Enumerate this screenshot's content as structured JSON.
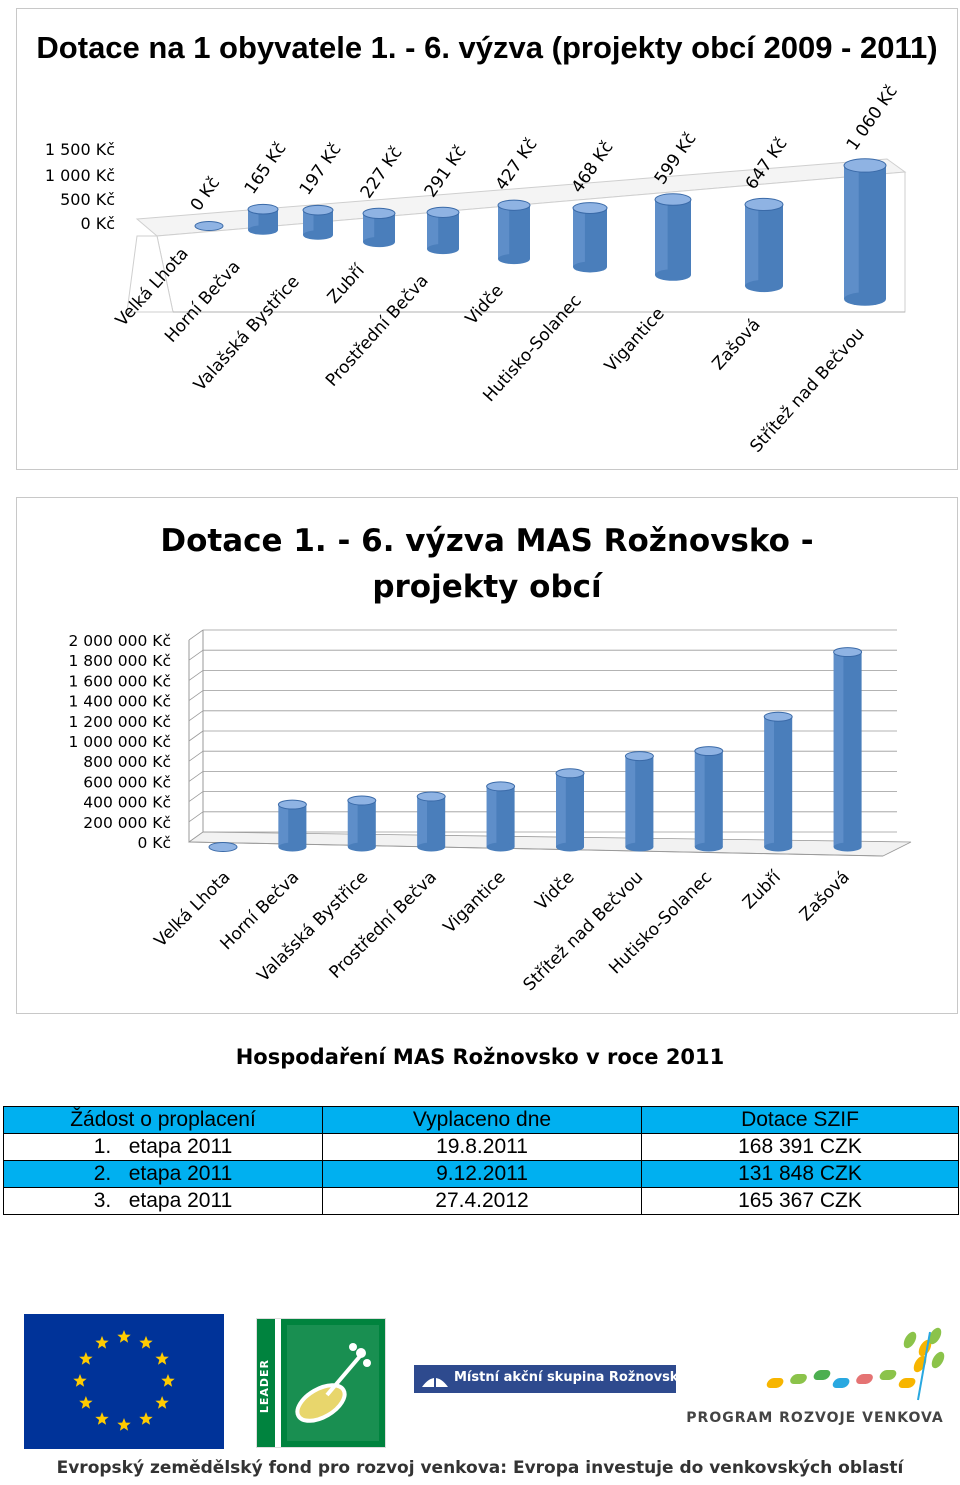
{
  "chart_data": [
    {
      "type": "bar",
      "title": "Dotace na 1 obyvatele 1. - 6. výzva (projekty obcí 2009 - 2011)",
      "categories": [
        "Velká Lhota",
        "Horní Bečva",
        "Valašská Bystřice",
        "Zubří",
        "Prostřední Bečva",
        "Vidče",
        "Hutisko-Solanec",
        "Vigantice",
        "Zašová",
        "Střítež nad Bečvou"
      ],
      "values": [
        0,
        165,
        197,
        227,
        291,
        427,
        468,
        599,
        647,
        1060
      ],
      "data_labels": [
        "0 Kč",
        "165 Kč",
        "197 Kč",
        "227 Kč",
        "291 Kč",
        "427 Kč",
        "468 Kč",
        "599 Kč",
        "647 Kč",
        "1 060 Kč"
      ],
      "y_ticks": [
        "1 500 Kč",
        "1 000 Kč",
        "500 Kč",
        "0 Kč"
      ],
      "ylim": [
        0,
        1500
      ],
      "unit": "Kč",
      "bar_color": "#4a7ebb",
      "style": "3d-cylinder"
    },
    {
      "type": "bar",
      "title": "Dotace 1. - 6. výzva MAS Rožnovsko - projekty obcí",
      "categories": [
        "Velká Lhota",
        "Horní Bečva",
        "Valašská Bystřice",
        "Prostřední Bečva",
        "Vigantice",
        "Vidče",
        "Střítež nad Bečvou",
        "Hutisko-Solanec",
        "Zubří",
        "Zašová"
      ],
      "values": [
        0,
        420000,
        460000,
        500000,
        600000,
        730000,
        900000,
        950000,
        1290000,
        1930000
      ],
      "y_ticks": [
        "2 000 000 Kč",
        "1 800 000 Kč",
        "1 600 000 Kč",
        "1 400 000 Kč",
        "1 200 000 Kč",
        "1 000 000 Kč",
        "800 000 Kč",
        "600 000 Kč",
        "400 000 Kč",
        "200 000 Kč",
        "0 Kč"
      ],
      "ylim": [
        0,
        2000000
      ],
      "grid": true,
      "bar_color": "#4a7ebb",
      "style": "3d-cylinder"
    }
  ],
  "hosp": {
    "title": "Hospodaření MAS Rožnovsko v roce 2011",
    "headers": [
      "Žádost o proplacení",
      "Vyplaceno dne",
      "Dotace SZIF"
    ],
    "rows": [
      [
        "1.   etapa 2011",
        "19.8.2011",
        "168 391 CZK"
      ],
      [
        "2.   etapa 2011",
        "9.12.2011",
        "131 848 CZK"
      ],
      [
        "3.   etapa 2011",
        "27.4.2012",
        "165 367 CZK"
      ]
    ],
    "header_color": "#00b0f0"
  },
  "logos": {
    "eu_flag_color": "#003399",
    "star_color": "#ffcc00",
    "leader_text": "LEADER",
    "leader_color": "#00833e",
    "mas_text": "Místní akční skupina Rožnovsko",
    "mas_color": "#2e4a8e",
    "prv_text": "PROGRAM ROZVOJE VENKOVA"
  },
  "footer": "Evropský zemědělský fond pro rozvoj venkova: Evropa investuje do venkovských oblastí"
}
